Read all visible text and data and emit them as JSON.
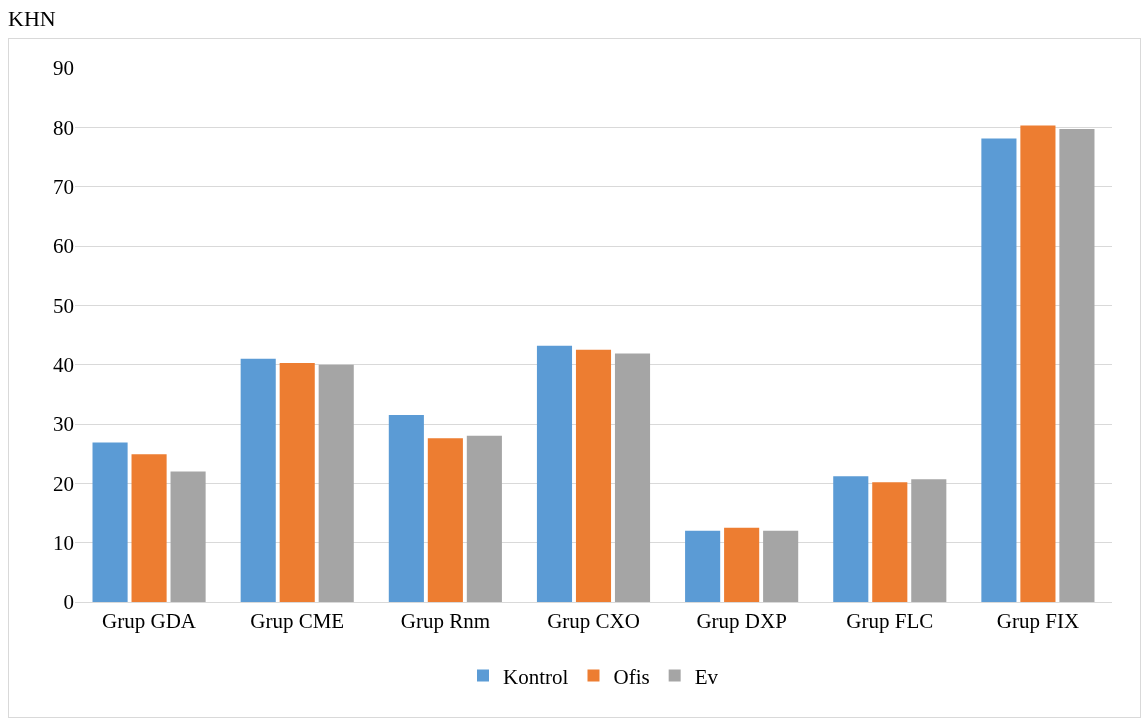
{
  "chart_data": {
    "type": "bar",
    "ylabel": "KHN",
    "categories": [
      "Grup GDA",
      "Grup CME",
      "Grup Rnm",
      "Grup CXO",
      "Grup DXP",
      "Grup FLC",
      "Grup FIX"
    ],
    "series": [
      {
        "name": "Kontrol",
        "color": "#5b9bd5",
        "values": [
          26.9,
          41.0,
          31.5,
          43.2,
          12.0,
          21.2,
          78.1
        ]
      },
      {
        "name": "Ofis",
        "color": "#ed7d31",
        "values": [
          24.9,
          40.3,
          27.6,
          42.5,
          12.5,
          20.2,
          80.3
        ]
      },
      {
        "name": "Ev",
        "color": "#a5a5a5",
        "values": [
          22.0,
          40.0,
          28.0,
          41.9,
          12.0,
          20.7,
          79.7
        ]
      }
    ],
    "ylim": [
      0,
      90
    ],
    "yticks": [
      0,
      10,
      20,
      30,
      40,
      50,
      60,
      70,
      80,
      90
    ],
    "grid": "y",
    "legend": "bottom"
  }
}
